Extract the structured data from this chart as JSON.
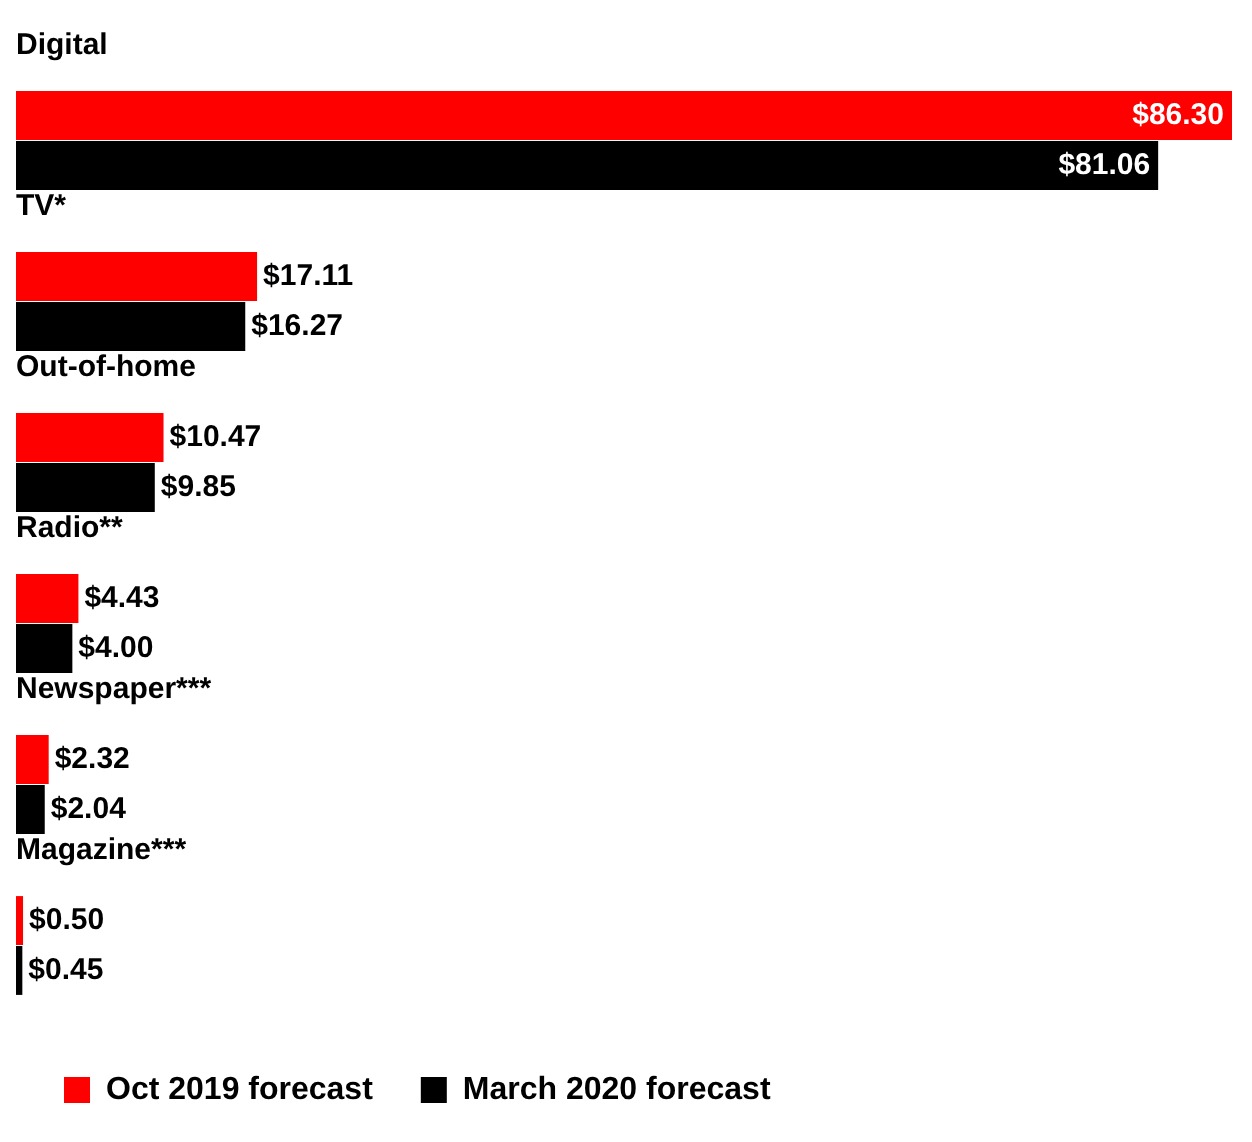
{
  "chart_data": {
    "type": "bar",
    "orientation": "horizontal",
    "categories": [
      "Digital",
      "TV*",
      "Out-of-home",
      "Radio**",
      "Newspaper***",
      "Magazine***"
    ],
    "series": [
      {
        "name": "Oct 2019 forecast",
        "color": "#ff0000",
        "values": [
          86.3,
          17.11,
          10.47,
          4.43,
          2.32,
          0.5
        ],
        "value_labels": [
          "$86.30",
          "$17.11",
          "$10.47",
          "$4.43",
          "$2.32",
          "$0.50"
        ]
      },
      {
        "name": "March 2020 forecast",
        "color": "#000000",
        "values": [
          81.06,
          16.27,
          9.85,
          4.0,
          2.04,
          0.45
        ],
        "value_labels": [
          "$81.06",
          "$16.27",
          "$9.85",
          "$4.00",
          "$2.04",
          "$0.45"
        ]
      }
    ],
    "legend": "bottom"
  }
}
